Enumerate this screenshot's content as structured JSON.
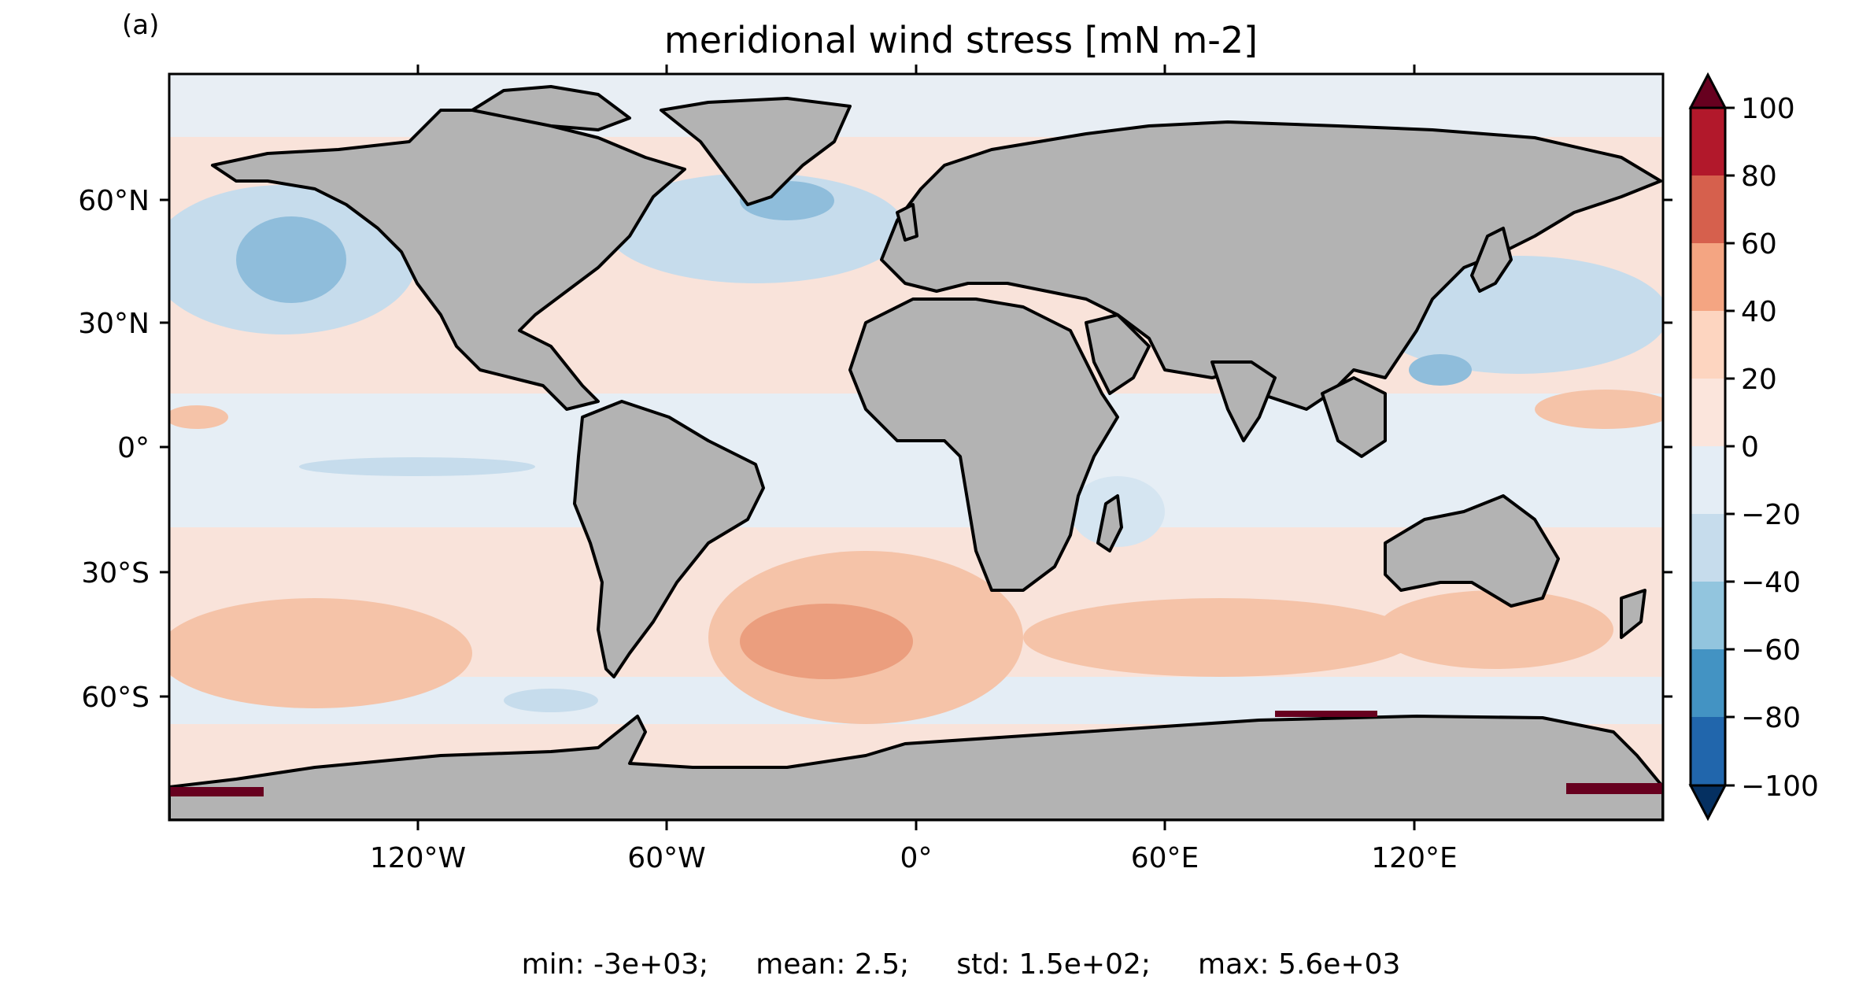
{
  "panel_label": "(a)",
  "title": "meridional wind stress [mN m-2]",
  "axes": {
    "lat_ticks": [
      "60°N",
      "30°N",
      "0°",
      "30°S",
      "60°S"
    ],
    "lon_ticks": [
      "120°W",
      "60°W",
      "0°",
      "60°E",
      "120°E"
    ]
  },
  "colorbar": {
    "ticks": [
      "100",
      "80",
      "60",
      "40",
      "20",
      "0",
      "−20",
      "−40",
      "−60",
      "−80",
      "−100"
    ],
    "colors_top_to_bottom": [
      "#67001f",
      "#b2182b",
      "#d6604d",
      "#f4a582",
      "#fddbc7",
      "#fbe5dc",
      "#e4edf5",
      "#d1e5f0",
      "#92c5de",
      "#4393c3",
      "#2166ac",
      "#053061"
    ]
  },
  "colors": {
    "land": "#b3b3b3",
    "ocean_background": "#e4edf5",
    "coast": "#000000"
  },
  "stats": {
    "min": "min: -3e+03;",
    "mean": "mean: 2.5;",
    "std": "std: 1.5e+02;",
    "max": "max: 5.6e+03"
  }
}
